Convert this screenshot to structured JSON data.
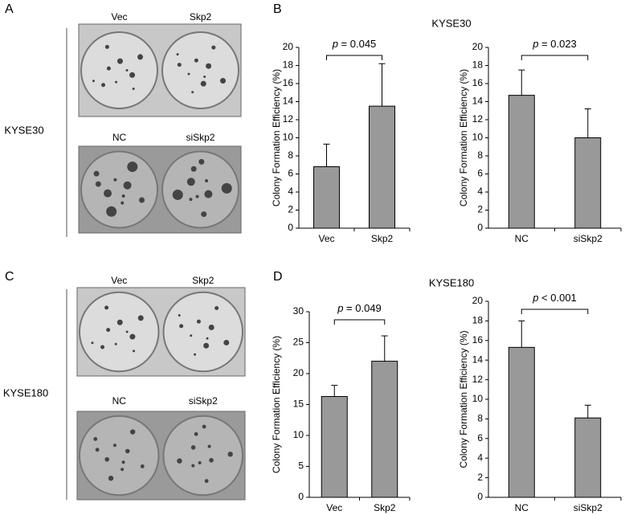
{
  "labels": {
    "panel_a": "A",
    "panel_b": "B",
    "panel_c": "C",
    "panel_d": "D",
    "cell_line_1": "KYSE30",
    "cell_line_2": "KYSE180"
  },
  "photos": [
    {
      "top_left": "Vec",
      "top_right": "Skp2",
      "bottom_left": "NC",
      "bottom_right": "siSkp2"
    },
    {
      "top_left": "Vec",
      "top_right": "Skp2",
      "bottom_left": "NC",
      "bottom_right": "siSkp2"
    }
  ],
  "chart_data": [
    {
      "type": "bar",
      "title": "KYSE30",
      "ylabel": "Colony Formation Efficiency (%)",
      "categories": [
        "Vec",
        "Skp2"
      ],
      "values": [
        6.8,
        13.5
      ],
      "errors": [
        2.5,
        4.7
      ],
      "color": "#999999",
      "ylim": [
        0,
        20
      ],
      "yticks": [
        0,
        2,
        4,
        6,
        8,
        10,
        12,
        14,
        16,
        18,
        20
      ],
      "p_symbol": "p",
      "p_text": "= 0.045"
    },
    {
      "type": "bar",
      "ylabel": "Colony Formation Efficiency (%)",
      "categories": [
        "NC",
        "siSkp2"
      ],
      "values": [
        14.7,
        10.0
      ],
      "errors": [
        2.8,
        3.2
      ],
      "color": "#999999",
      "ylim": [
        0,
        20
      ],
      "yticks": [
        0,
        2,
        4,
        6,
        8,
        10,
        12,
        14,
        16,
        18,
        20
      ],
      "p_symbol": "p",
      "p_text": "= 0.023"
    },
    {
      "type": "bar",
      "title": "KYSE180",
      "ylabel": "Colony Formation Efficiency (%)",
      "categories": [
        "Vec",
        "Skp2"
      ],
      "values": [
        16.3,
        22.0
      ],
      "errors": [
        1.8,
        4.1
      ],
      "color": "#999999",
      "ylim": [
        0,
        30
      ],
      "yticks": [
        0,
        5,
        10,
        15,
        20,
        25,
        30
      ],
      "p_symbol": "p",
      "p_text": "= 0.049"
    },
    {
      "type": "bar",
      "ylabel": "Colony Formation Efficiency (%)",
      "categories": [
        "NC",
        "siSkp2"
      ],
      "values": [
        15.3,
        8.1
      ],
      "errors": [
        2.7,
        1.3
      ],
      "color": "#999999",
      "ylim": [
        0,
        20
      ],
      "yticks": [
        0,
        2,
        4,
        6,
        8,
        10,
        12,
        14,
        16,
        18,
        20
      ],
      "p_symbol": "p",
      "p_text": "< 0.001"
    }
  ]
}
